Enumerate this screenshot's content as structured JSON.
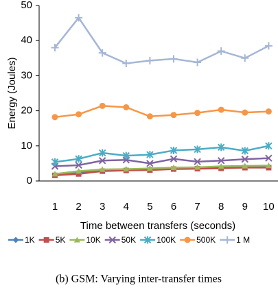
{
  "chart_data": {
    "type": "line",
    "x_label": "Time between transfers (seconds)",
    "y_label": "Energy (Joules)",
    "caption": "(b) GSM: Varying inter-transfer times",
    "categories": [
      "1",
      "2",
      "3",
      "4",
      "5",
      "6",
      "7",
      "8",
      "9",
      "10"
    ],
    "ylim": [
      0,
      50
    ],
    "yticks": [
      0,
      10,
      20,
      30,
      40,
      50
    ],
    "grid": false,
    "legend": "bottom",
    "series": [
      {
        "name": "1K",
        "color": "#4f81bd",
        "marker": "diamond",
        "values": [
          1.8,
          2.5,
          2.9,
          3.2,
          3.4,
          3.5,
          3.7,
          3.8,
          3.9,
          4.0
        ]
      },
      {
        "name": "5K",
        "color": "#c0504d",
        "marker": "square",
        "values": [
          1.6,
          2.0,
          2.8,
          3.0,
          3.1,
          3.4,
          3.5,
          3.6,
          3.8,
          3.8
        ]
      },
      {
        "name": "10K",
        "color": "#9bbb59",
        "marker": "triangle",
        "values": [
          2.0,
          2.8,
          3.3,
          3.4,
          3.6,
          3.8,
          3.9,
          4.2,
          4.3,
          4.4
        ]
      },
      {
        "name": "50K",
        "color": "#8064a2",
        "marker": "x",
        "values": [
          4.2,
          4.5,
          5.8,
          6.0,
          5.0,
          6.3,
          5.5,
          5.8,
          6.2,
          6.5
        ]
      },
      {
        "name": "100K",
        "color": "#4bacc6",
        "marker": "star",
        "values": [
          5.4,
          6.3,
          8.0,
          7.2,
          7.5,
          8.7,
          9.0,
          9.6,
          8.6,
          10.0
        ]
      },
      {
        "name": "500K",
        "color": "#f79646",
        "marker": "circle",
        "values": [
          18.2,
          19.0,
          21.4,
          21.0,
          18.4,
          18.8,
          19.4,
          20.3,
          19.5,
          19.8
        ]
      },
      {
        "name": "1 M",
        "color": "#a5b6d6",
        "marker": "plus",
        "values": [
          38.0,
          46.5,
          36.5,
          33.5,
          34.3,
          34.8,
          33.8,
          37.0,
          35.0,
          38.5
        ]
      }
    ]
  }
}
